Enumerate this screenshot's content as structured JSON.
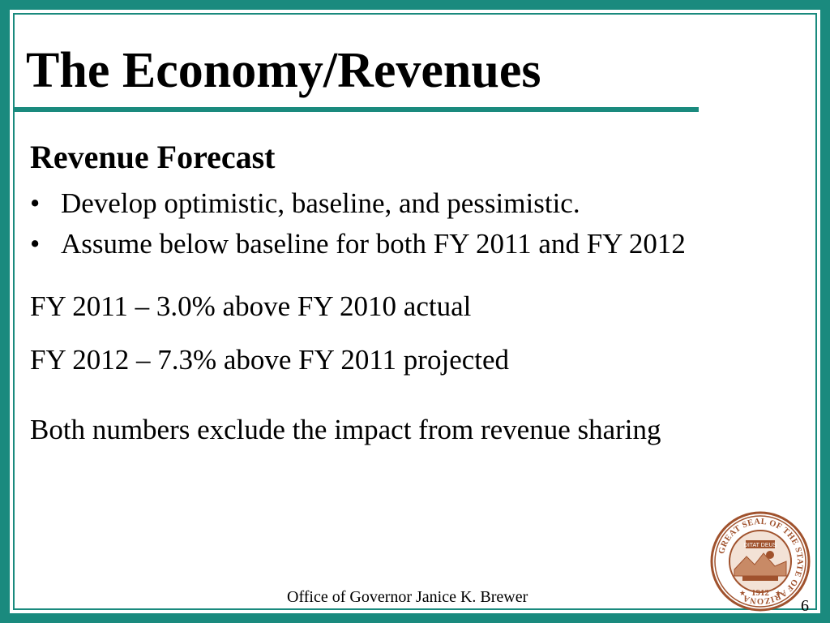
{
  "slide": {
    "title": "The Economy/Revenues",
    "subtitle": "Revenue Forecast",
    "bullets": [
      {
        "marker": "•",
        "text": "Develop optimistic, baseline, and pessimistic."
      },
      {
        "marker": "•",
        "text": "Assume below baseline for both FY 2011 and FY 2012"
      }
    ],
    "line_fy2011": "FY 2011 – 3.0% above FY 2010 actual",
    "line_fy2012": "FY 2012 – 7.3% above FY 2011 projected",
    "note": "Both numbers exclude the impact from revenue sharing",
    "footer": "Office of Governor Janice K. Brewer",
    "page_number": "6",
    "seal": {
      "ring_text": "GREAT SEAL OF THE STATE OF ARIZONA",
      "motto": "DITAT DEUS",
      "year": "1912"
    }
  },
  "colors": {
    "accent": "#1a8a7e",
    "seal": "#a0522d"
  }
}
